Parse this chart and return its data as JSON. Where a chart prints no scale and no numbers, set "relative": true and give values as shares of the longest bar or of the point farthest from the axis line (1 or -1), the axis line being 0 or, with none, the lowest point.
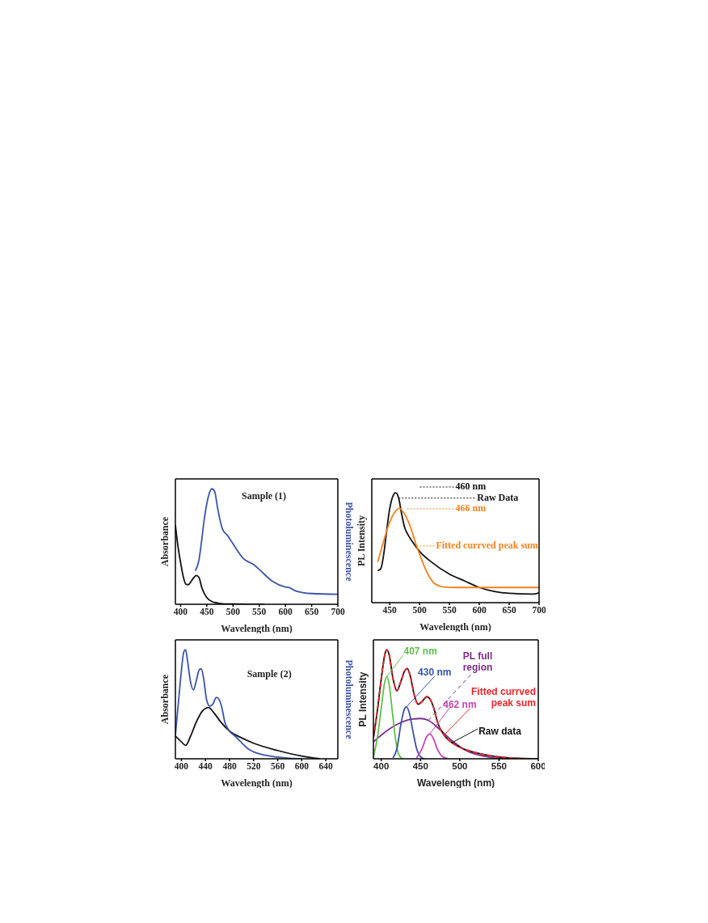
{
  "chart_data": [
    {
      "type": "line",
      "relative": true,
      "annotations": [
        "Sample (1)"
      ],
      "xlabel": "Wavelength (nm)",
      "ylabel": "Absorbance",
      "y2label": "Photoluminescence",
      "xlim": [
        390,
        700
      ],
      "xticks": [
        400,
        450,
        500,
        550,
        600,
        650,
        700
      ],
      "series": [
        {
          "color": "#111111",
          "x": [
            390,
            395,
            400,
            405,
            410,
            415,
            420,
            425,
            430,
            435,
            440,
            445,
            450,
            460,
            470,
            480,
            500,
            560
          ],
          "values": [
            0.686,
            0.5,
            0.36,
            0.24,
            0.174,
            0.17,
            0.198,
            0.23,
            0.249,
            0.233,
            0.151,
            0.095,
            0.058,
            0.023,
            0.012,
            0.005,
            0.002,
            0
          ]
        },
        {
          "color": "#3b55a8",
          "x": [
            428,
            435,
            440,
            445,
            450,
            455,
            460,
            465,
            470,
            475,
            480,
            490,
            500,
            520,
            540,
            550,
            575,
            600,
            607,
            620,
            650,
            700
          ],
          "values": [
            0.29,
            0.384,
            0.547,
            0.733,
            0.872,
            0.965,
            1,
            0.977,
            0.849,
            0.733,
            0.651,
            0.593,
            0.523,
            0.395,
            0.342,
            0.302,
            0.2,
            0.15,
            0.145,
            0.115,
            0.093,
            0.086
          ]
        }
      ]
    },
    {
      "type": "line",
      "relative": true,
      "xlabel": "Wavelength (nm)",
      "ylabel": "PL Intensity",
      "xlim": [
        420,
        700
      ],
      "xticks": [
        450,
        500,
        550,
        600,
        650,
        700
      ],
      "annotations": [
        "460 nm",
        "466 nm"
      ],
      "series": [
        {
          "name": "Raw Data",
          "color": "#111111",
          "x": [
            430,
            435,
            440,
            445,
            450,
            455,
            460,
            465,
            470,
            475,
            480,
            490,
            500,
            520,
            550,
            575,
            600,
            625,
            650,
            690,
            700
          ],
          "values": [
            0.291,
            0.308,
            0.44,
            0.66,
            0.854,
            0.964,
            1,
            0.951,
            0.806,
            0.684,
            0.624,
            0.539,
            0.466,
            0.369,
            0.26,
            0.199,
            0.138,
            0.102,
            0.085,
            0.078,
            0.09
          ]
        },
        {
          "name": "Fitted currved peak sum",
          "color": "#f5821f",
          "x": [
            430,
            440,
            450,
            460,
            466,
            475,
            485,
            495,
            505,
            515,
            525,
            540,
            560,
            700
          ],
          "values": [
            0.369,
            0.563,
            0.733,
            0.835,
            0.859,
            0.806,
            0.684,
            0.515,
            0.369,
            0.248,
            0.175,
            0.143,
            0.138,
            0.138
          ]
        }
      ]
    },
    {
      "type": "line",
      "relative": true,
      "annotations": [
        "Sample (2)"
      ],
      "xlabel": "Wavelength (nm)",
      "ylabel": "Absorbance",
      "y2label": "Photoluminescence",
      "xlim": [
        390,
        660
      ],
      "xticks": [
        400,
        440,
        480,
        520,
        560,
        600,
        640
      ],
      "series": [
        {
          "color": "#111111",
          "x": [
            390,
            400,
            407,
            415,
            425,
            435,
            445,
            455,
            465,
            480,
            500,
            520,
            560,
            600,
            630
          ],
          "values": [
            0.209,
            0.155,
            0.123,
            0.204,
            0.34,
            0.438,
            0.47,
            0.414,
            0.34,
            0.254,
            0.192,
            0.143,
            0.076,
            0.025,
            0
          ]
        },
        {
          "color": "#3b55a8",
          "x": [
            390,
            395,
            400,
            404,
            407,
            410,
            415,
            420,
            425,
            430,
            433,
            437,
            442,
            447,
            452,
            458,
            462,
            467,
            472,
            480,
            490,
            500,
            510,
            520,
            540,
            560,
            580,
            600
          ],
          "values": [
            0.217,
            0.512,
            0.808,
            0.98,
            1,
            0.906,
            0.709,
            0.631,
            0.722,
            0.82,
            0.825,
            0.734,
            0.537,
            0.483,
            0.5,
            0.562,
            0.549,
            0.475,
            0.34,
            0.254,
            0.204,
            0.148,
            0.094,
            0.064,
            0.032,
            0.015,
            0.005,
            0
          ]
        }
      ]
    },
    {
      "type": "line",
      "relative": true,
      "xlabel": "Wavelength (nm)",
      "ylabel": "PL Intensity",
      "xlim": [
        390,
        600
      ],
      "xticks": [
        400,
        450,
        500,
        550,
        600
      ],
      "series": [
        {
          "name": "PL full region",
          "color": "#7b2a8a",
          "x": [
            390,
            400,
            420,
            440,
            450,
            460,
            475,
            490,
            510,
            530,
            550,
            600
          ],
          "values": [
            0.155,
            0.217,
            0.315,
            0.365,
            0.369,
            0.352,
            0.266,
            0.167,
            0.069,
            0.025,
            0.005,
            0
          ]
        },
        {
          "name": "407 nm",
          "color": "#5ec14a",
          "x": [
            390,
            395,
            400,
            404,
            407,
            410,
            414,
            418,
            422,
            427
          ],
          "values": [
            0.02,
            0.192,
            0.463,
            0.685,
            0.754,
            0.685,
            0.438,
            0.192,
            0.044,
            0
          ]
        },
        {
          "name": "430 nm",
          "color": "#3a53a4",
          "x": [
            415,
            420,
            425,
            430,
            432,
            436,
            440,
            445,
            450,
            455
          ],
          "values": [
            0.007,
            0.094,
            0.315,
            0.463,
            0.475,
            0.414,
            0.266,
            0.094,
            0.02,
            0
          ]
        },
        {
          "name": "462 nm",
          "color": "#c545b4",
          "x": [
            445,
            452,
            458,
            462,
            466,
            472,
            478,
            485
          ],
          "values": [
            0.007,
            0.094,
            0.204,
            0.229,
            0.192,
            0.081,
            0.02,
            0
          ]
        },
        {
          "name": "Raw data",
          "color": "#111111",
          "x": [
            390,
            395,
            400,
            405,
            407,
            410,
            415,
            420,
            425,
            430,
            433,
            437,
            442,
            447,
            452,
            458,
            462,
            467,
            472,
            480,
            490,
            500,
            520,
            540,
            560,
            590
          ],
          "values": [
            0.192,
            0.438,
            0.734,
            0.968,
            1,
            0.956,
            0.734,
            0.623,
            0.709,
            0.808,
            0.828,
            0.759,
            0.586,
            0.5,
            0.525,
            0.569,
            0.549,
            0.463,
            0.328,
            0.217,
            0.148,
            0.106,
            0.057,
            0.027,
            0.01,
            0
          ]
        },
        {
          "name": "Fitted currved peak sum",
          "color": "#e8262b",
          "line_style": "dashed",
          "x": [
            390,
            395,
            400,
            405,
            407,
            410,
            415,
            420,
            425,
            430,
            433,
            437,
            442,
            447,
            452,
            458,
            462,
            467,
            472,
            480,
            490,
            500,
            520,
            540,
            560,
            590
          ],
          "values": [
            0.192,
            0.438,
            0.734,
            0.968,
            1,
            0.956,
            0.734,
            0.623,
            0.709,
            0.808,
            0.828,
            0.759,
            0.586,
            0.5,
            0.525,
            0.569,
            0.549,
            0.463,
            0.328,
            0.217,
            0.148,
            0.106,
            0.057,
            0.027,
            0.01,
            0
          ]
        }
      ]
    }
  ]
}
